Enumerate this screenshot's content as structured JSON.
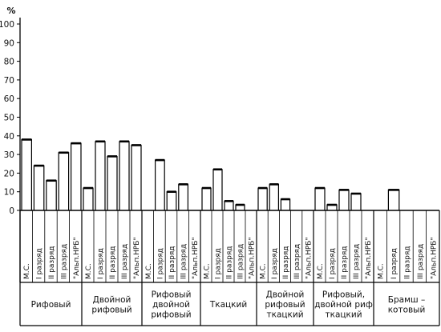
{
  "chart_data": {
    "type": "bar",
    "ylabel": "%",
    "ylim": [
      0,
      100
    ],
    "yticks": [
      0,
      10,
      20,
      30,
      40,
      50,
      60,
      70,
      80,
      90,
      100
    ],
    "grid": false,
    "groups": [
      {
        "label_lines": [
          "Рифовый"
        ],
        "categories": [
          "М.С.",
          "I разряд",
          "II разряд",
          "III разряд",
          "\"Альп.НРБ\""
        ],
        "values": [
          38,
          24,
          16,
          31,
          36
        ]
      },
      {
        "label_lines": [
          "Двойной",
          "рифовый"
        ],
        "categories": [
          "М.С.",
          "I разряд",
          "II разряд",
          "III разряд",
          "\"Альп.НРБ\""
        ],
        "values": [
          12,
          37,
          29,
          37,
          35
        ]
      },
      {
        "label_lines": [
          "Рифовый",
          "двойной",
          "рифовый"
        ],
        "categories": [
          "М.С.",
          "I разряд",
          "II разряд",
          "III разряд",
          "\"Альп.НРБ\""
        ],
        "values": [
          0,
          27,
          10,
          14,
          0
        ]
      },
      {
        "label_lines": [
          "Ткацкий"
        ],
        "categories": [
          "М.С.",
          "I разряд",
          "II разряд",
          "III разряд",
          "\"Альп.НРБ\""
        ],
        "values": [
          12,
          22,
          5,
          3,
          0
        ]
      },
      {
        "label_lines": [
          "Двойной",
          "рифовый",
          "ткацкий"
        ],
        "categories": [
          "М.С.",
          "I разряд",
          "II разряд",
          "III разряд",
          "\"Альп.НРБ\""
        ],
        "values": [
          12,
          14,
          6,
          0,
          0
        ]
      },
      {
        "label_lines": [
          "Рифовый,",
          "двойной риф",
          "ткацкий"
        ],
        "categories": [
          "М.С.",
          "I разряд",
          "II разряд",
          "III разряд",
          "\"Альп.НРБ\""
        ],
        "values": [
          12,
          3,
          11,
          9,
          0
        ]
      },
      {
        "label_lines": [
          "Брамш –",
          "котовый"
        ],
        "categories": [
          "М.С.",
          "I разряд",
          "II разряд",
          "III разряд",
          "\"Альп.НРБ\""
        ],
        "values": [
          0,
          11,
          0,
          0,
          0
        ]
      }
    ]
  }
}
